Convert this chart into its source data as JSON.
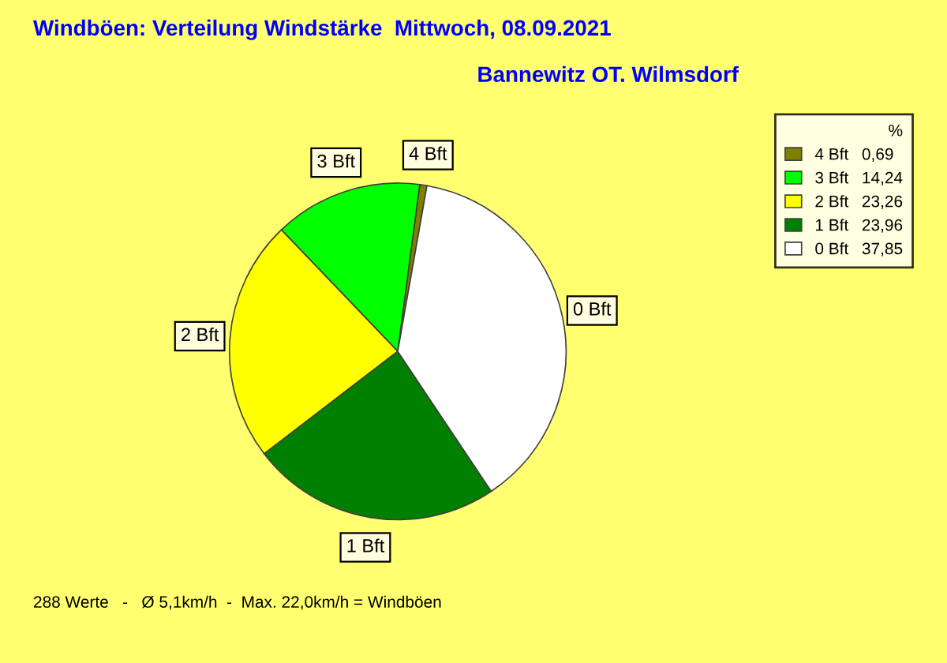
{
  "chart_data": {
    "type": "pie",
    "title": "Windböen: Verteilung Windstärke  Mittwoch, 08.09.2021",
    "subtitle": "Bannewitz OT. Wilmsdorf",
    "categories": [
      "4 Bft",
      "3 Bft",
      "2 Bft",
      "1 Bft",
      "0 Bft"
    ],
    "values": [
      0.69,
      14.24,
      23.26,
      23.96,
      37.85
    ],
    "value_labels": [
      "0,69",
      "14,24",
      "23,26",
      "23,96",
      "37,85"
    ],
    "colors": [
      "#808000",
      "#00ff00",
      "#ffff00",
      "#008000",
      "#ffffff"
    ],
    "legend_title": "%",
    "legend": "top right",
    "annotations": [
      "288 Werte   -   Ø 5,1km/h  -  Max. 22,0km/h = Windböen"
    ]
  }
}
